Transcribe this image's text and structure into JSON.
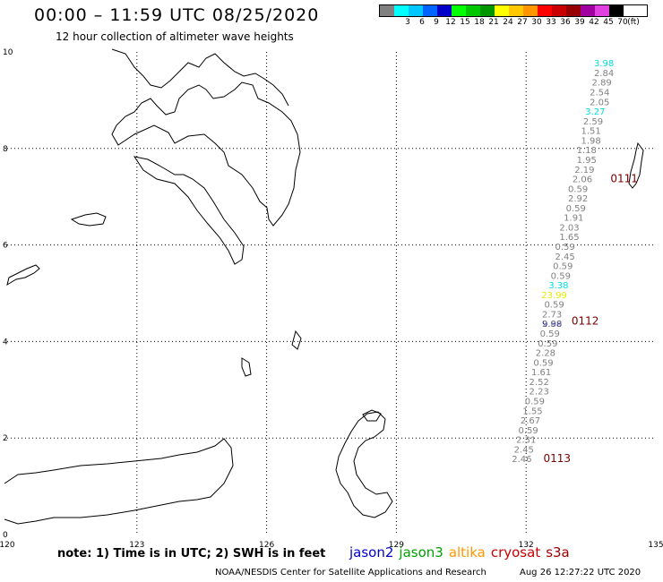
{
  "header": {
    "title": "00:00 – 11:59 UTC 08/25/2020",
    "subtitle": "12 hour collection of altimeter wave heights"
  },
  "color_scale": {
    "unit": "(ft)",
    "items": [
      {
        "label": "",
        "color": "#808080"
      },
      {
        "label": "3",
        "color": "#00ffff"
      },
      {
        "label": "6",
        "color": "#00c8ff"
      },
      {
        "label": "9",
        "color": "#0064ff"
      },
      {
        "label": "12",
        "color": "#0000c8"
      },
      {
        "label": "15",
        "color": "#00ff00"
      },
      {
        "label": "18",
        "color": "#00c800"
      },
      {
        "label": "21",
        "color": "#009600"
      },
      {
        "label": "24",
        "color": "#ffff00"
      },
      {
        "label": "27",
        "color": "#ffc800"
      },
      {
        "label": "30",
        "color": "#ff9600"
      },
      {
        "label": "33",
        "color": "#ff0000"
      },
      {
        "label": "36",
        "color": "#c80000"
      },
      {
        "label": "39",
        "color": "#960000"
      },
      {
        "label": "42",
        "color": "#a000a0"
      },
      {
        "label": "45",
        "color": "#e040e0"
      },
      {
        "label": "70",
        "color": "#000000"
      }
    ]
  },
  "axes": {
    "x_ticks": [
      "120",
      "123",
      "126",
      "129",
      "132",
      "135"
    ],
    "y_ticks": [
      "0",
      "2",
      "4",
      "6",
      "8",
      "10"
    ]
  },
  "wave_heights": [
    {
      "lon": 133.8,
      "lat": 9.7,
      "value": "3.98",
      "color": "#00dede"
    },
    {
      "lon": 133.8,
      "lat": 9.5,
      "value": "2.84",
      "color": "#808080"
    },
    {
      "lon": 133.75,
      "lat": 9.3,
      "value": "2.89",
      "color": "#808080"
    },
    {
      "lon": 133.7,
      "lat": 9.1,
      "value": "2.54",
      "color": "#808080"
    },
    {
      "lon": 133.7,
      "lat": 8.9,
      "value": "2.05",
      "color": "#808080"
    },
    {
      "lon": 133.6,
      "lat": 8.7,
      "value": "3.27",
      "color": "#00dede"
    },
    {
      "lon": 133.55,
      "lat": 8.5,
      "value": "2.59",
      "color": "#808080"
    },
    {
      "lon": 133.5,
      "lat": 8.3,
      "value": "1.51",
      "color": "#808080"
    },
    {
      "lon": 133.5,
      "lat": 8.1,
      "value": "1.98",
      "color": "#808080"
    },
    {
      "lon": 133.4,
      "lat": 7.9,
      "value": "1.18",
      "color": "#808080"
    },
    {
      "lon": 133.4,
      "lat": 7.7,
      "value": "1.95",
      "color": "#808080"
    },
    {
      "lon": 133.35,
      "lat": 7.5,
      "value": "2.19",
      "color": "#808080"
    },
    {
      "lon": 133.3,
      "lat": 7.3,
      "value": "2.06",
      "color": "#808080"
    },
    {
      "lon": 133.2,
      "lat": 7.1,
      "value": "0.59",
      "color": "#808080"
    },
    {
      "lon": 133.2,
      "lat": 6.9,
      "value": "2.92",
      "color": "#808080"
    },
    {
      "lon": 133.15,
      "lat": 6.7,
      "value": "0.59",
      "color": "#808080"
    },
    {
      "lon": 133.1,
      "lat": 6.5,
      "value": "1.91",
      "color": "#808080"
    },
    {
      "lon": 133.0,
      "lat": 6.3,
      "value": "2.03",
      "color": "#808080"
    },
    {
      "lon": 133.0,
      "lat": 6.1,
      "value": "1.65",
      "color": "#808080"
    },
    {
      "lon": 132.9,
      "lat": 5.9,
      "value": "0.59",
      "color": "#808080"
    },
    {
      "lon": 132.9,
      "lat": 5.7,
      "value": "2.45",
      "color": "#808080"
    },
    {
      "lon": 132.85,
      "lat": 5.5,
      "value": "0.59",
      "color": "#808080"
    },
    {
      "lon": 132.8,
      "lat": 5.3,
      "value": "0.59",
      "color": "#808080"
    },
    {
      "lon": 132.75,
      "lat": 5.1,
      "value": "3.38",
      "color": "#00dede"
    },
    {
      "lon": 132.65,
      "lat": 4.9,
      "value": "23.99",
      "color": "#e8e800"
    },
    {
      "lon": 132.65,
      "lat": 4.7,
      "value": "0.59",
      "color": "#808080"
    },
    {
      "lon": 132.6,
      "lat": 4.5,
      "value": "2.73",
      "color": "#808080"
    },
    {
      "lon": 132.6,
      "lat": 4.3,
      "value": "9.98",
      "color": "#0000c8"
    },
    {
      "lon": 132.55,
      "lat": 4.1,
      "value": "0.59",
      "color": "#808080"
    },
    {
      "lon": 132.5,
      "lat": 3.9,
      "value": "0.59",
      "color": "#808080"
    },
    {
      "lon": 132.45,
      "lat": 3.7,
      "value": "2.28",
      "color": "#808080"
    },
    {
      "lon": 132.4,
      "lat": 3.5,
      "value": "0.59",
      "color": "#808080"
    },
    {
      "lon": 132.35,
      "lat": 3.3,
      "value": "1.61",
      "color": "#808080"
    },
    {
      "lon": 132.3,
      "lat": 3.1,
      "value": "2.52",
      "color": "#808080"
    },
    {
      "lon": 132.3,
      "lat": 2.9,
      "value": "2.23",
      "color": "#808080"
    },
    {
      "lon": 132.2,
      "lat": 2.7,
      "value": "0.59",
      "color": "#808080"
    },
    {
      "lon": 132.15,
      "lat": 2.5,
      "value": "1.55",
      "color": "#808080"
    },
    {
      "lon": 132.1,
      "lat": 2.3,
      "value": "2.67",
      "color": "#808080"
    },
    {
      "lon": 132.05,
      "lat": 2.1,
      "value": "0.59",
      "color": "#808080"
    },
    {
      "lon": 132.0,
      "lat": 1.9,
      "value": "2.31",
      "color": "#808080"
    },
    {
      "lon": 131.95,
      "lat": 1.7,
      "value": "2.45",
      "color": "#808080"
    },
    {
      "lon": 131.9,
      "lat": 1.5,
      "value": "2.46",
      "color": "#808080"
    },
    {
      "lon": 132.6,
      "lat": 4.3,
      "value": "2.89",
      "color": "#808080"
    }
  ],
  "pass_labels": [
    {
      "lon": 133.95,
      "lat": 7.3,
      "text": "0111"
    },
    {
      "lon": 133.05,
      "lat": 4.35,
      "text": "0112"
    },
    {
      "lon": 132.4,
      "lat": 1.5,
      "text": "0113"
    }
  ],
  "note": "note: 1) Time is in UTC; 2) SWH is in feet",
  "satellites": [
    {
      "name": "jason2",
      "color": "#0000c8"
    },
    {
      "name": "jason3",
      "color": "#00a000"
    },
    {
      "name": "altika",
      "color": "#ff9600"
    },
    {
      "name": "cryosat",
      "color": "#c80000"
    },
    {
      "name": "s3a",
      "color": "#a00000"
    }
  ],
  "footer": {
    "credit": "NOAA/NESDIS Center for Satellite Applications and Research",
    "timestamp": "Aug 26 12:27:22 UTC 2020"
  }
}
